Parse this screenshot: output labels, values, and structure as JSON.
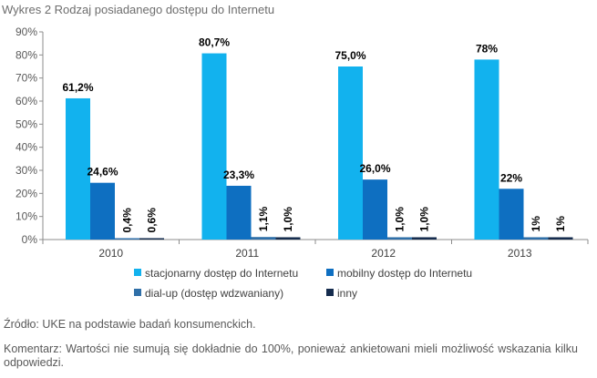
{
  "chart_data": {
    "type": "bar",
    "title": "Wykres 2 Rodzaj posiadanego dostępu do Internetu",
    "categories": [
      "2010",
      "2011",
      "2012",
      "2013"
    ],
    "series": [
      {
        "name": "stacjonarny dostęp do Internetu",
        "color": "#12b2ee",
        "values": [
          61.2,
          80.7,
          75.0,
          78
        ],
        "labels": [
          "61,2%",
          "80,7%",
          "75,0%",
          "78%"
        ],
        "label_rotated": false
      },
      {
        "name": "mobilny dostęp do Internetu",
        "color": "#0e6fc1",
        "values": [
          24.6,
          23.3,
          26.0,
          22
        ],
        "labels": [
          "24,6%",
          "23,3%",
          "26,0%",
          "22%"
        ],
        "label_rotated": false
      },
      {
        "name": "dial-up (dostęp wdzwaniany)",
        "color": "#2f6fa8",
        "values": [
          0.4,
          1.1,
          1.0,
          1
        ],
        "labels": [
          "0,4%",
          "1,1%",
          "1,0%",
          "1%"
        ],
        "label_rotated": true
      },
      {
        "name": "inny",
        "color": "#152c4e",
        "values": [
          0.6,
          1.0,
          1.0,
          1
        ],
        "labels": [
          "0,6%",
          "1,0%",
          "1,0%",
          "1%"
        ],
        "label_rotated": true
      }
    ],
    "yticks": [
      "0%",
      "10%",
      "20%",
      "30%",
      "40%",
      "50%",
      "60%",
      "70%",
      "80%",
      "90%"
    ],
    "ylim": [
      0,
      90
    ],
    "xlabel": "",
    "ylabel": "",
    "grid": false,
    "legend_position": "bottom"
  },
  "notes": {
    "source": "Źródło: UKE na podstawie badań konsumenckich.",
    "comment": "Komentarz: Wartości nie sumują się dokładnie do 100%, ponieważ ankietowani mieli możliwość wskazania kilku odpowiedzi."
  }
}
